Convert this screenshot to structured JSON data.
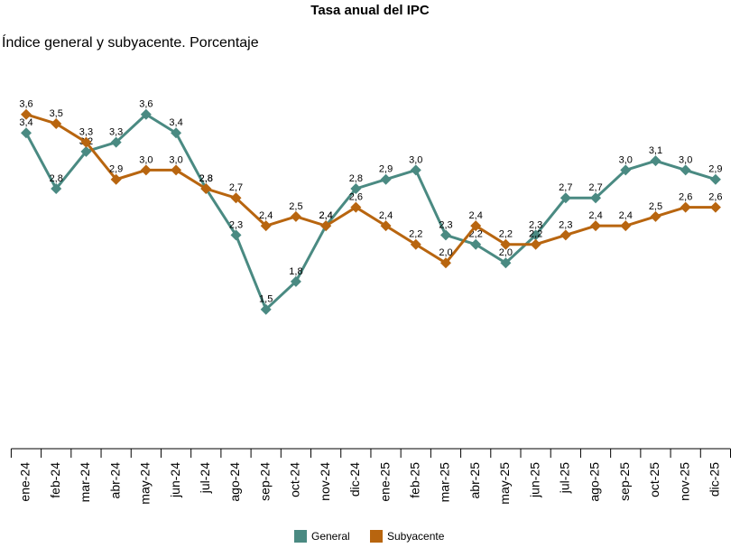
{
  "chart_data": {
    "type": "line",
    "title": "Tasa anual del IPC",
    "subtitle": "Índice general y subyacente. Porcentaje",
    "categories": [
      "ene-24",
      "feb-24",
      "mar-24",
      "abr-24",
      "may-24",
      "jun-24",
      "jul-24",
      "ago-24",
      "sep-24",
      "oct-24",
      "nov-24",
      "dic-24",
      "ene-25",
      "feb-25",
      "mar-25",
      "abr-25",
      "may-25",
      "jun-25",
      "jul-25",
      "ago-25",
      "sep-25",
      "oct-25",
      "nov-25",
      "dic-25"
    ],
    "series": [
      {
        "name": "General",
        "color": "#4a8a82",
        "values": [
          3.4,
          2.8,
          3.2,
          3.3,
          3.6,
          3.4,
          2.8,
          2.3,
          1.5,
          1.8,
          2.4,
          2.8,
          2.9,
          3.0,
          2.3,
          2.2,
          2.0,
          2.3,
          2.7,
          2.7,
          3.0,
          3.1,
          3.0,
          2.9
        ],
        "value_labels": [
          "3,4",
          "2,8",
          "3,2",
          "3,3",
          "3,6",
          "3,4",
          "2,8",
          "2,3",
          "1,5",
          "1,8",
          "2,4",
          "2,8",
          "2,9",
          "3,0",
          "2,3",
          "2,2",
          "2,0",
          "2,3",
          "2,7",
          "2,7",
          "3,0",
          "3,1",
          "3,0",
          "2,9"
        ]
      },
      {
        "name": "Subyacente",
        "color": "#b8650f",
        "values": [
          3.6,
          3.5,
          3.3,
          2.9,
          3.0,
          3.0,
          2.8,
          2.7,
          2.4,
          2.5,
          2.4,
          2.6,
          2.4,
          2.2,
          2.0,
          2.4,
          2.2,
          2.2,
          2.3,
          2.4,
          2.4,
          2.5,
          2.6,
          2.6
        ],
        "value_labels": [
          "3,6",
          "3,5",
          "3,3",
          "2,9",
          "3,0",
          "3,0",
          "2,8",
          "2,7",
          "2,4",
          "2,5",
          "2,4",
          "2,6",
          "2,4",
          "2,2",
          "2,0",
          "2,4",
          "2,2",
          "2,2",
          "2,3",
          "2,4",
          "2,4",
          "2,5",
          "2,6",
          "2,6"
        ]
      }
    ],
    "ylim": [
      0,
      4.2
    ]
  }
}
